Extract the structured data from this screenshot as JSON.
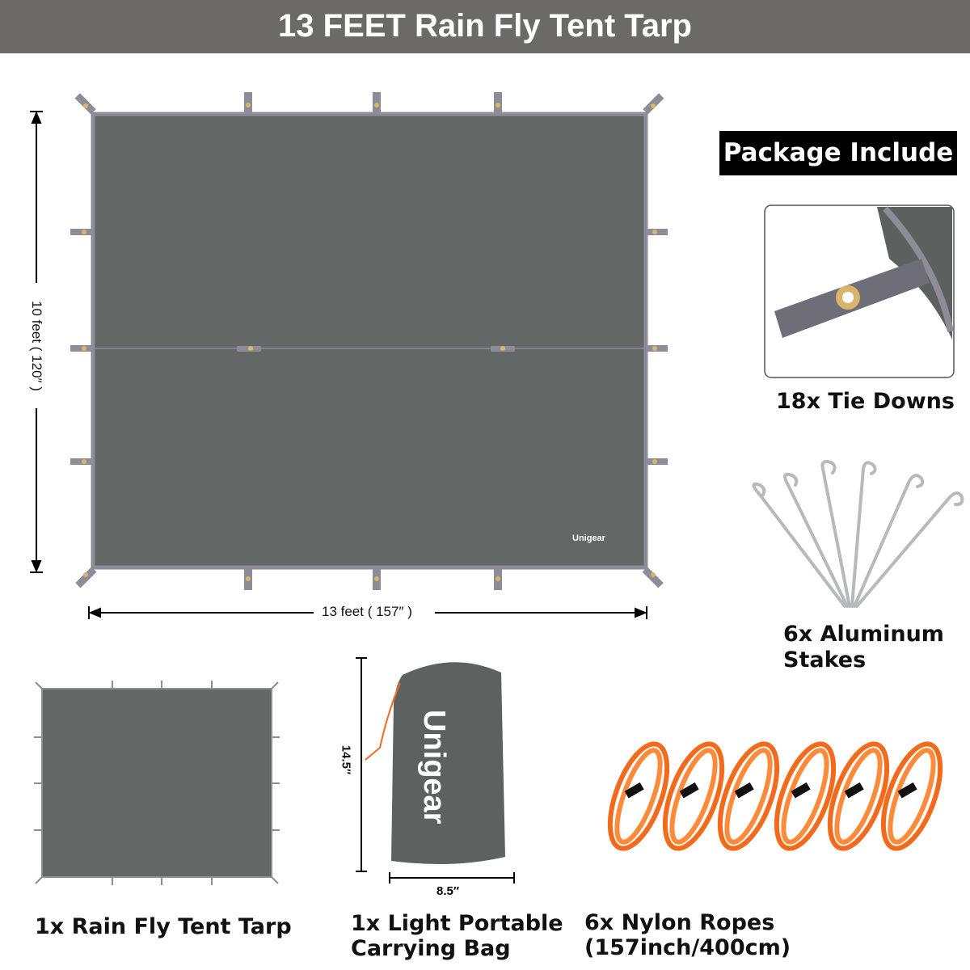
{
  "header": {
    "title": "13 FEET  Rain Fly Tent Tarp"
  },
  "package": {
    "label": "Package Include"
  },
  "main_tarp": {
    "height_label": "10 feet ( 120″ )",
    "width_label": "13 feet ( 157″ )",
    "logo": "Unigear"
  },
  "items": [
    {
      "caption": "18x Tie Downs"
    },
    {
      "caption_line1": "6x Aluminum",
      "caption_line2": "Stakes"
    },
    {
      "caption": "1x Rain Fly Tent Tarp"
    },
    {
      "caption_line1": "1x Light Portable",
      "caption_line2": "Carrying Bag",
      "height_label": "14.5″",
      "width_label": "8.5″",
      "logo": "Unigear"
    },
    {
      "caption": "6x Nylon Ropes (157inch/400cm)"
    }
  ],
  "colors": {
    "header": "#6b6a67",
    "tarp": "#636867",
    "edge": "#8e8d97",
    "rope": "#f26a1b",
    "grommet": "#d8b56a"
  }
}
